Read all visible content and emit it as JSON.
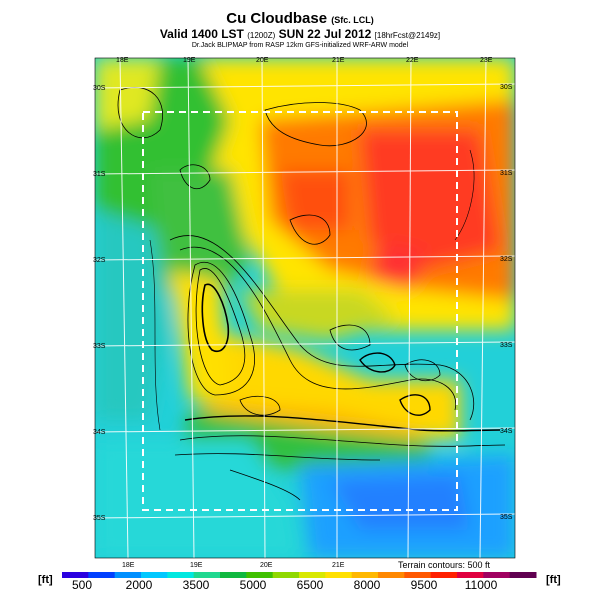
{
  "header": {
    "title": "Cu Cloudbase",
    "title_note": "(Sfc. LCL)",
    "valid": "Valid 1400 LST",
    "valid_code": "(1200Z)",
    "date": "SUN 22 Jul 2012",
    "forecast": "[18hrFcst@2149z]",
    "credit": "Dr.Jack BLIPMAP from RASP 12km GFS-initialized WRF-ARW model"
  },
  "map": {
    "lon_labels_top": [
      "18E",
      "19E",
      "20E",
      "21E",
      "22E",
      "23E"
    ],
    "lon_labels_bottom": [
      "18E",
      "19E",
      "20E",
      "21E"
    ],
    "lat_labels_left": [
      "30S",
      "31S",
      "32S",
      "33S",
      "34S",
      "35S"
    ],
    "lat_labels_right": [
      "30S",
      "31S",
      "32S",
      "33S",
      "34S",
      "35S"
    ],
    "terrain_note": "Terrain contours: 500 ft",
    "colors": {
      "low": "#1a9fff",
      "mid_low": "#22d8e0",
      "mid": "#20c020",
      "mid_high": "#ffe800",
      "high": "#ff6a00",
      "peak": "#ff2a2a"
    }
  },
  "colorbar": {
    "unit": "[ft]",
    "labels": [
      "500",
      "2000",
      "3500",
      "5000",
      "6500",
      "8000",
      "9500",
      "11000"
    ],
    "colors": [
      "#2a00e0",
      "#0040ff",
      "#0090ff",
      "#00c8ff",
      "#00e8e0",
      "#20d890",
      "#10b840",
      "#40c000",
      "#90d800",
      "#d8e800",
      "#ffe000",
      "#ffb800",
      "#ff8800",
      "#ff5800",
      "#ff2000",
      "#e00040",
      "#a00060",
      "#600050"
    ]
  }
}
